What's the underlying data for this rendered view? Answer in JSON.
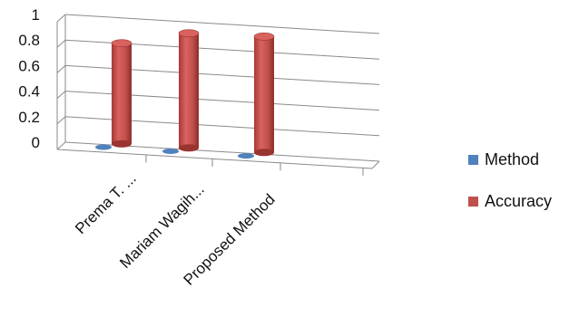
{
  "chart_data": {
    "type": "bar",
    "style": "3d-cylinder",
    "categories": [
      "Prema T. ...",
      "Mariam Wagih...",
      "Proposed Method"
    ],
    "series": [
      {
        "name": "Method",
        "values": [
          0,
          0,
          0
        ],
        "color": "#4f81bd"
      },
      {
        "name": "Accuracy",
        "values": [
          0.83,
          0.94,
          0.95
        ],
        "color": "#c0504d"
      }
    ],
    "yticks": [
      "0",
      "0.2",
      "0.4",
      "0.6",
      "0.8",
      "1"
    ],
    "ylim": [
      0,
      1
    ],
    "grid": true,
    "legend": "right"
  }
}
